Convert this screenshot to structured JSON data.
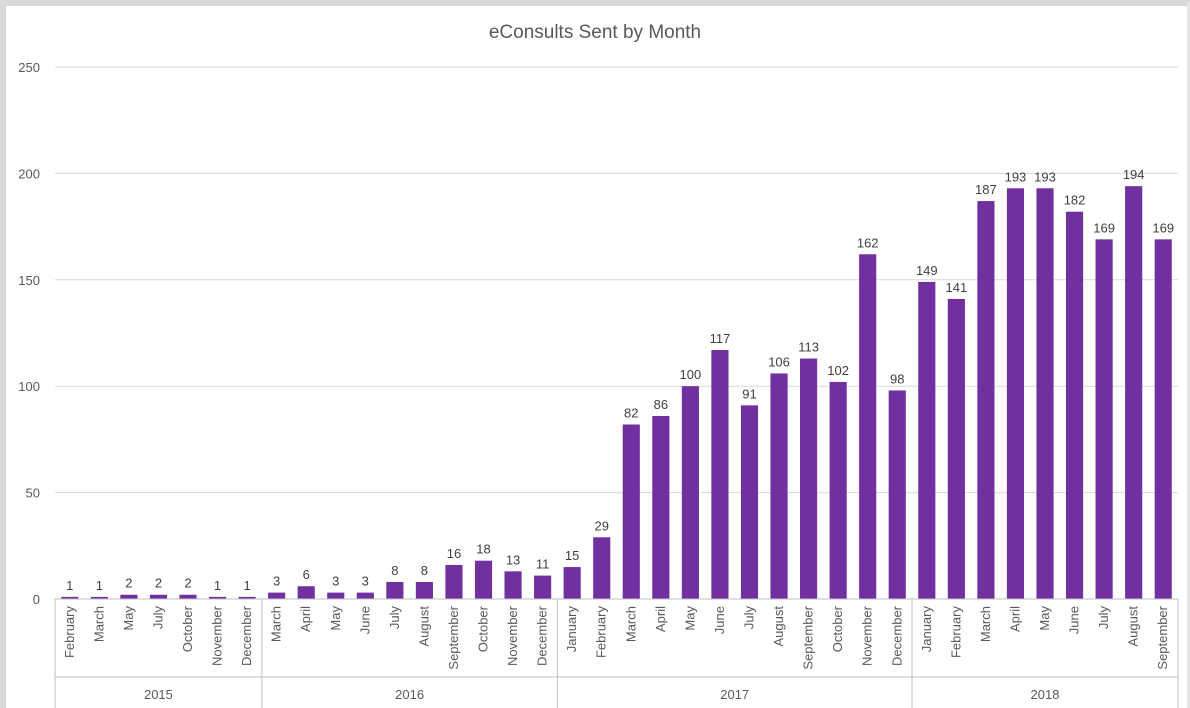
{
  "chart_data": {
    "type": "bar",
    "title": "eConsults Sent by Month",
    "xlabel": "",
    "ylabel": "",
    "ylim": [
      0,
      250
    ],
    "yticks": [
      0,
      50,
      100,
      150,
      200,
      250
    ],
    "grid": true,
    "legend": "none",
    "bar_color": "#7030a0",
    "groups": [
      {
        "label": "2015",
        "count": 7
      },
      {
        "label": "2016",
        "count": 10
      },
      {
        "label": "2017",
        "count": 12
      },
      {
        "label": "2018",
        "count": 9
      }
    ],
    "categories": [
      "February",
      "March",
      "May",
      "July",
      "October",
      "November",
      "December",
      "March",
      "April",
      "May",
      "June",
      "July",
      "August",
      "September",
      "October",
      "November",
      "December",
      "January",
      "February",
      "March",
      "April",
      "May",
      "June",
      "July",
      "August",
      "September",
      "October",
      "November",
      "December",
      "January",
      "February",
      "March",
      "April",
      "May",
      "June",
      "July",
      "August",
      "September"
    ],
    "values": [
      1,
      1,
      2,
      2,
      2,
      1,
      1,
      3,
      6,
      3,
      3,
      8,
      8,
      16,
      18,
      13,
      11,
      15,
      29,
      82,
      86,
      100,
      117,
      91,
      106,
      113,
      102,
      162,
      98,
      149,
      141,
      187,
      193,
      193,
      182,
      169,
      194,
      169
    ]
  }
}
